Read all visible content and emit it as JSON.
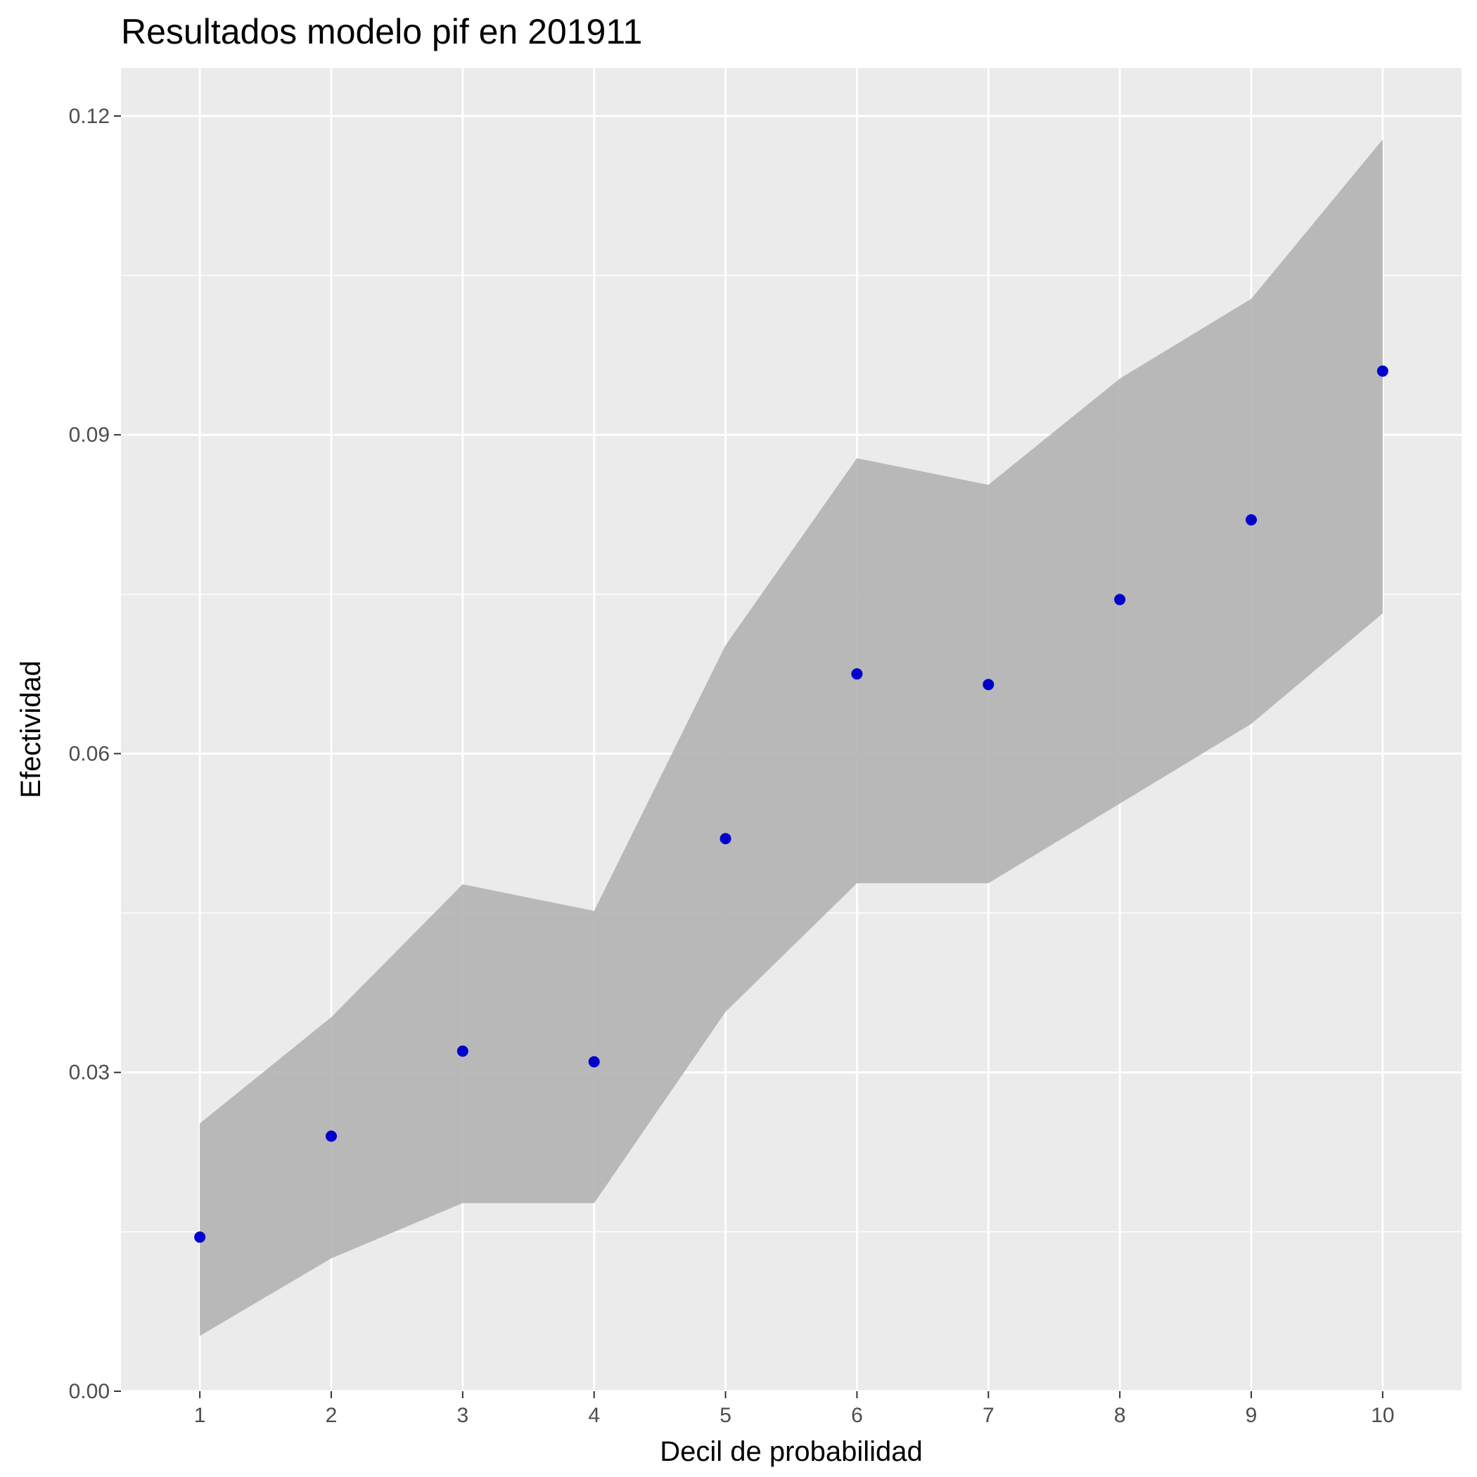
{
  "chart_data": {
    "type": "scatter",
    "title": "Resultados modelo pif en 201911",
    "xlabel": "Decil de probabilidad",
    "ylabel": "Efectividad",
    "x": [
      1,
      2,
      3,
      4,
      5,
      6,
      7,
      8,
      9,
      10
    ],
    "x_tick_labels": [
      "1",
      "2",
      "3",
      "4",
      "5",
      "6",
      "7",
      "8",
      "9",
      "10"
    ],
    "y_ticks": [
      0.0,
      0.03,
      0.06,
      0.09,
      0.12
    ],
    "y_tick_labels": [
      "0.00",
      "0.03",
      "0.06",
      "0.09",
      "0.12"
    ],
    "xlim": [
      0.4,
      10.6
    ],
    "ylim": [
      0.0,
      0.1245
    ],
    "grid": true,
    "series": [
      {
        "values": [
          0.0145,
          0.024,
          0.032,
          0.031,
          0.052,
          0.0675,
          0.0665,
          0.0745,
          0.082,
          0.096
        ],
        "lower": [
          0.0052,
          0.0125,
          0.0177,
          0.0177,
          0.0357,
          0.0478,
          0.0478,
          0.0553,
          0.0628,
          0.0732
        ],
        "upper": [
          0.0252,
          0.0352,
          0.0477,
          0.0452,
          0.0702,
          0.0878,
          0.0853,
          0.0953,
          0.1028,
          0.1178
        ]
      }
    ],
    "colors": {
      "points": "#0000CD",
      "ribbon": "#B3B3B3",
      "panel": "#EBEBEB",
      "grid": "#FFFFFF"
    }
  }
}
